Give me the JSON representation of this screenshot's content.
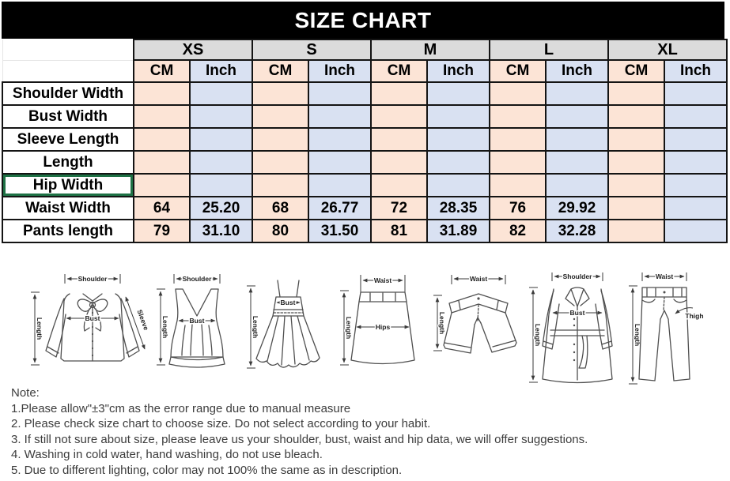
{
  "title": "SIZE CHART",
  "table": {
    "sizes": [
      "XS",
      "S",
      "M",
      "L",
      "XL"
    ],
    "unit_headers": [
      "CM",
      "Inch"
    ],
    "rows": [
      {
        "label": "Shoulder Width",
        "values": [
          "",
          "",
          "",
          "",
          "",
          "",
          "",
          "",
          "",
          ""
        ]
      },
      {
        "label": "Bust Width",
        "values": [
          "",
          "",
          "",
          "",
          "",
          "",
          "",
          "",
          "",
          ""
        ]
      },
      {
        "label": "Sleeve Length",
        "values": [
          "",
          "",
          "",
          "",
          "",
          "",
          "",
          "",
          "",
          ""
        ]
      },
      {
        "label": "Length",
        "values": [
          "",
          "",
          "",
          "",
          "",
          "",
          "",
          "",
          "",
          ""
        ]
      },
      {
        "label": "Hip Width",
        "selected": true,
        "values": [
          "",
          "",
          "",
          "",
          "",
          "",
          "",
          "",
          "",
          ""
        ]
      },
      {
        "label": "Waist Width",
        "values": [
          "64",
          "25.20",
          "68",
          "26.77",
          "72",
          "28.35",
          "76",
          "29.92",
          "",
          ""
        ]
      },
      {
        "label": "Pants length",
        "values": [
          "79",
          "31.10",
          "80",
          "31.50",
          "81",
          "31.89",
          "82",
          "32.28",
          "",
          ""
        ]
      }
    ]
  },
  "diagrams": [
    {
      "name": "blouse",
      "labels": {
        "shoulder": "Shoulder",
        "length": "Length",
        "bust": "Bust",
        "sleeve": "Sleeve"
      }
    },
    {
      "name": "vest-top",
      "labels": {
        "shoulder": "Shoulder",
        "length": "Length",
        "bust": "Bust"
      }
    },
    {
      "name": "slip-dress",
      "labels": {
        "length": "Length",
        "bust": "Bust"
      }
    },
    {
      "name": "skirt",
      "labels": {
        "waist": "Waist",
        "length": "Length",
        "hips": "Hips"
      }
    },
    {
      "name": "shorts",
      "labels": {
        "waist": "Waist",
        "length": "Length"
      }
    },
    {
      "name": "coat",
      "labels": {
        "shoulder": "Shoulder",
        "length": "Length",
        "bust": "Bust"
      }
    },
    {
      "name": "pants",
      "labels": {
        "waist": "Waist",
        "length": "Length",
        "thigh": "Thigh"
      }
    }
  ],
  "notes": {
    "heading": "Note:",
    "items": [
      "1.Please allow\"±3\"cm as the error range due to manual measure",
      "2. Please check size chart to choose size. Do not select according to your habit.",
      "3. If still not sure about size, please leave us your shoulder, bust, waist and hip data, we will offer suggestions.",
      "4. Washing in cold water, hand washing, do not use bleach.",
      "5. Due to different lighting, color may not 100% the same as in description."
    ]
  },
  "colors": {
    "cm_fill": "#FCE4D6",
    "inch_fill": "#D9E1F2",
    "size_header_fill": "#DBDBDB",
    "header_bg": "#000000",
    "header_text": "#FFFFFF",
    "selection_green": "#1E7145",
    "table_border": "#141414"
  }
}
